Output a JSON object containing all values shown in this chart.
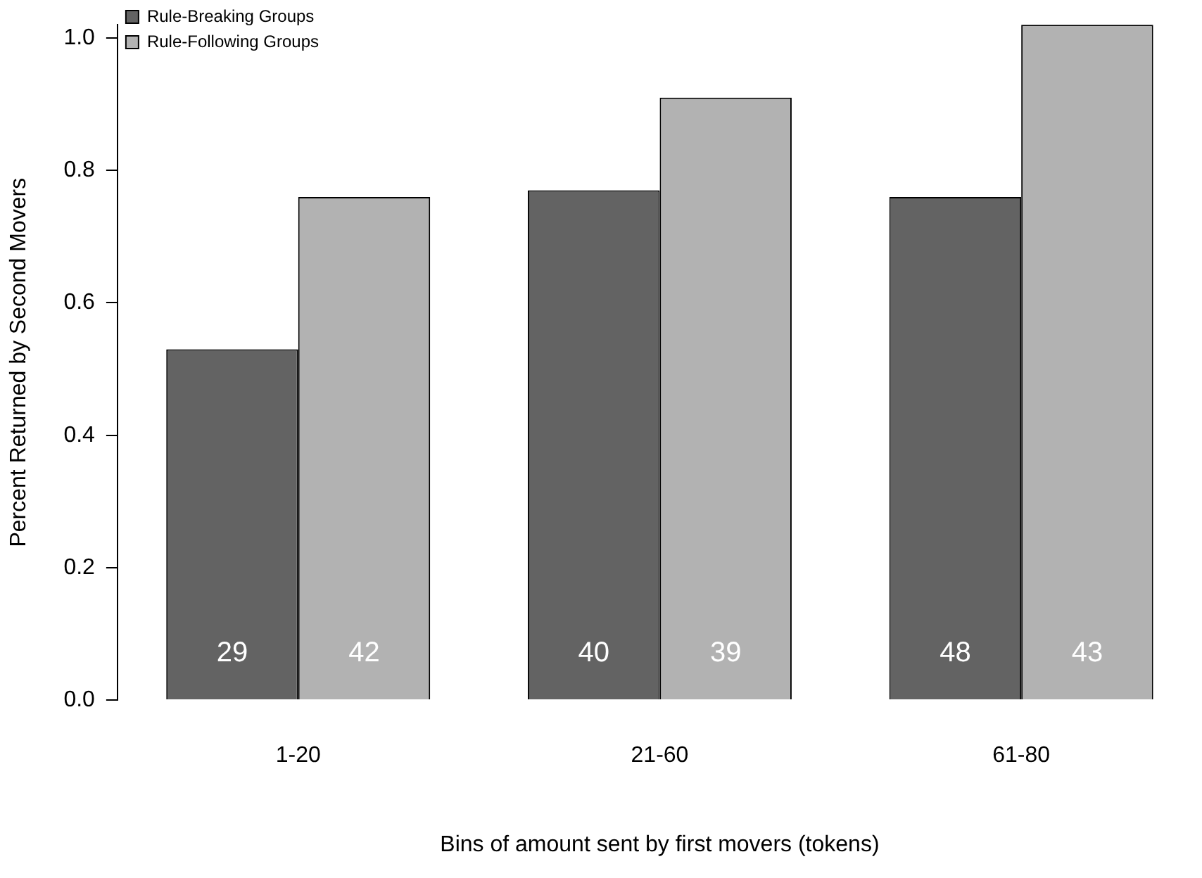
{
  "chart_data": {
    "type": "bar",
    "xlabel": "Bins of amount sent by first movers (tokens)",
    "ylabel": "Percent Returned by Second Movers",
    "categories": [
      "1-20",
      "21-60",
      "61-80"
    ],
    "series": [
      {
        "name": "Rule-Breaking Groups",
        "color": "#636363",
        "values": [
          0.53,
          0.77,
          0.76
        ]
      },
      {
        "name": "Rule-Following Groups",
        "color": "#b2b2b2",
        "values": [
          0.76,
          0.91,
          1.02
        ]
      }
    ],
    "annotations": [
      {
        "text": "29",
        "x": "1-20",
        "y": 0.07
      },
      {
        "text": "42",
        "x": "1-20",
        "y": 0.07
      },
      {
        "text": "40",
        "x": "21-60",
        "y": 0.07
      },
      {
        "text": "39",
        "x": "21-60",
        "y": 0.07
      },
      {
        "text": "48",
        "x": "61-80",
        "y": 0.07
      },
      {
        "text": "43",
        "x": "61-80",
        "y": 0.07
      }
    ],
    "ylim": [
      0,
      1.02
    ],
    "yticks": [
      {
        "value": 0,
        "label": "0.0"
      },
      {
        "value": 0.2,
        "label": "0.2"
      },
      {
        "value": 0.4,
        "label": "0.4"
      },
      {
        "value": 0.6,
        "label": "0.6"
      },
      {
        "value": 0.8,
        "label": "0.8"
      },
      {
        "value": 1,
        "label": "1.0"
      }
    ],
    "grid": false,
    "legend": "top left"
  }
}
